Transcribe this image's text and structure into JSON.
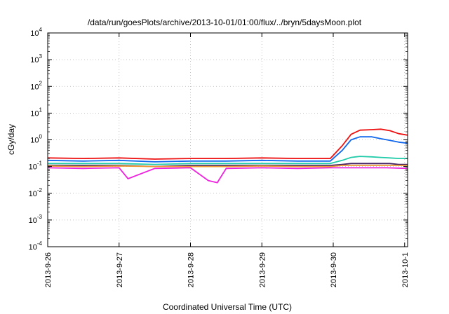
{
  "chart_data": {
    "type": "line",
    "title": "/data/run/goesPlots/archive/2013-10-01/01:00/flux/../bryn/5daysMoon.plot",
    "xlabel": "Coordinated Universal Time (UTC)",
    "ylabel": "cGy/day",
    "yscale": "log",
    "ylim": [
      0.0001,
      10000
    ],
    "xlim": [
      "2013-09-26",
      "2013-10-01 01:00"
    ],
    "x_tick_labels": [
      "2013-9-26",
      "2013-9-27",
      "2013-9-28",
      "2013-9-29",
      "2013-9-30",
      "2013-10-1"
    ],
    "x_ticks": [
      "2013-09-26",
      "2013-09-27",
      "2013-09-28",
      "2013-09-29",
      "2013-09-30",
      "2013-10-01"
    ],
    "y_ticks": [
      {
        "base": "10",
        "exp": "-4"
      },
      {
        "base": "10",
        "exp": "-3"
      },
      {
        "base": "10",
        "exp": "-2"
      },
      {
        "base": "10",
        "exp": "-1"
      },
      {
        "base": "10",
        "exp": "0"
      },
      {
        "base": "10",
        "exp": "1"
      },
      {
        "base": "10",
        "exp": "2"
      },
      {
        "base": "10",
        "exp": "3"
      },
      {
        "base": "10",
        "exp": "4"
      }
    ],
    "grid": true,
    "legend": "none",
    "series": [
      {
        "color": "#ee1111",
        "x": [
          "2013-09-26 00:00",
          "2013-09-26 12:00",
          "2013-09-27 00:00",
          "2013-09-27 12:00",
          "2013-09-28 00:00",
          "2013-09-28 12:00",
          "2013-09-29 00:00",
          "2013-09-29 12:00",
          "2013-09-29 23:00",
          "2013-09-30 03:00",
          "2013-09-30 06:00",
          "2013-09-30 09:00",
          "2013-09-30 13:00",
          "2013-09-30 16:00",
          "2013-09-30 19:00",
          "2013-09-30 22:00",
          "2013-10-01 01:00"
        ],
        "y": [
          0.21,
          0.2,
          0.21,
          0.19,
          0.2,
          0.2,
          0.21,
          0.2,
          0.2,
          0.6,
          1.6,
          2.3,
          2.4,
          2.5,
          2.2,
          1.7,
          1.5
        ]
      },
      {
        "color": "#1166ee",
        "x": [
          "2013-09-26 00:00",
          "2013-09-26 12:00",
          "2013-09-27 00:00",
          "2013-09-27 12:00",
          "2013-09-28 00:00",
          "2013-09-28 12:00",
          "2013-09-29 00:00",
          "2013-09-29 12:00",
          "2013-09-29 23:00",
          "2013-09-30 03:00",
          "2013-09-30 06:00",
          "2013-09-30 09:00",
          "2013-09-30 13:00",
          "2013-09-30 16:00",
          "2013-09-30 19:00",
          "2013-09-30 22:00",
          "2013-10-01 01:00"
        ],
        "y": [
          0.17,
          0.16,
          0.17,
          0.15,
          0.16,
          0.16,
          0.17,
          0.16,
          0.16,
          0.4,
          1.0,
          1.3,
          1.3,
          1.1,
          0.95,
          0.82,
          0.75
        ]
      },
      {
        "color": "#22ccaa",
        "x": [
          "2013-09-26 00:00",
          "2013-09-26 12:00",
          "2013-09-27 00:00",
          "2013-09-27 12:00",
          "2013-09-28 00:00",
          "2013-09-28 12:00",
          "2013-09-29 00:00",
          "2013-09-29 12:00",
          "2013-09-29 23:00",
          "2013-09-30 03:00",
          "2013-09-30 06:00",
          "2013-09-30 09:00",
          "2013-09-30 13:00",
          "2013-09-30 16:00",
          "2013-09-30 19:00",
          "2013-09-30 22:00",
          "2013-10-01 01:00"
        ],
        "y": [
          0.13,
          0.13,
          0.13,
          0.12,
          0.13,
          0.13,
          0.13,
          0.13,
          0.13,
          0.17,
          0.22,
          0.24,
          0.23,
          0.22,
          0.21,
          0.2,
          0.2
        ]
      },
      {
        "color": "#442266",
        "x": [
          "2013-09-26 00:00",
          "2013-09-26 12:00",
          "2013-09-27 00:00",
          "2013-09-27 12:00",
          "2013-09-28 00:00",
          "2013-09-28 12:00",
          "2013-09-29 00:00",
          "2013-09-29 12:00",
          "2013-09-29 23:00",
          "2013-09-30 03:00",
          "2013-09-30 06:00",
          "2013-09-30 09:00",
          "2013-09-30 13:00",
          "2013-09-30 16:00",
          "2013-09-30 19:00",
          "2013-09-30 22:00",
          "2013-10-01 01:00"
        ],
        "y": [
          0.11,
          0.11,
          0.11,
          0.1,
          0.11,
          0.11,
          0.11,
          0.11,
          0.11,
          0.12,
          0.13,
          0.13,
          0.13,
          0.13,
          0.13,
          0.12,
          0.12
        ]
      },
      {
        "color": "#ee9933",
        "x": [
          "2013-09-26 00:00",
          "2013-09-26 12:00",
          "2013-09-27 00:00",
          "2013-09-27 12:00",
          "2013-09-28 00:00",
          "2013-09-28 12:00",
          "2013-09-29 00:00",
          "2013-09-29 12:00",
          "2013-09-29 23:00",
          "2013-09-30 03:00",
          "2013-09-30 06:00",
          "2013-09-30 09:00",
          "2013-09-30 13:00",
          "2013-09-30 16:00",
          "2013-09-30 19:00",
          "2013-09-30 22:00",
          "2013-10-01 01:00"
        ],
        "y": [
          0.105,
          0.1,
          0.105,
          0.1,
          0.1,
          0.1,
          0.105,
          0.1,
          0.1,
          0.11,
          0.11,
          0.11,
          0.11,
          0.11,
          0.11,
          0.11,
          0.11
        ]
      },
      {
        "color": "#ee22dd",
        "x": [
          "2013-09-26 00:00",
          "2013-09-26 12:00",
          "2013-09-27 00:00",
          "2013-09-27 03:00",
          "2013-09-27 12:00",
          "2013-09-28 00:00",
          "2013-09-28 06:00",
          "2013-09-28 09:00",
          "2013-09-28 12:00",
          "2013-09-29 00:00",
          "2013-09-29 12:00",
          "2013-09-29 23:00",
          "2013-09-30 06:00",
          "2013-09-30 12:00",
          "2013-09-30 18:00",
          "2013-10-01 01:00"
        ],
        "y": [
          0.09,
          0.085,
          0.09,
          0.035,
          0.085,
          0.09,
          0.03,
          0.025,
          0.085,
          0.09,
          0.085,
          0.09,
          0.09,
          0.09,
          0.09,
          0.085
        ]
      }
    ]
  }
}
